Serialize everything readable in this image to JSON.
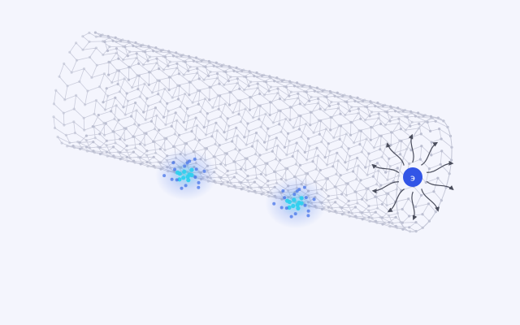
{
  "illustration": {
    "subject": "carbon-nanotube",
    "electron_label": "э",
    "colors": {
      "background": "#f4f5fd",
      "lattice_line": "#c5c8d8",
      "lattice_node": "#b9bdd0",
      "hotspot_core": "#2fd0ee",
      "hotspot_glow": "#3d6ee8",
      "electron_fill": "#3255e6",
      "arrow": "#4a4d5c"
    },
    "hotspot_count": 2,
    "arrow_count": 10
  }
}
